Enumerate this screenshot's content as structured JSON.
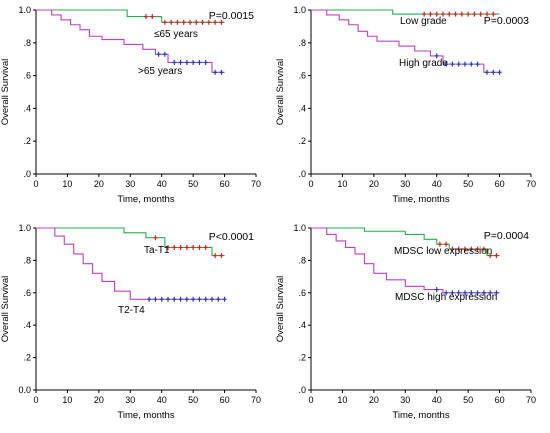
{
  "chart_data": [
    {
      "type": "line",
      "step": true,
      "xlabel": "Time, months",
      "ylabel": "Overall  Survival",
      "xlim": [
        0,
        70
      ],
      "ylim": [
        0,
        1.0
      ],
      "x_ticks": [
        "0",
        "10",
        "20",
        "30",
        "40",
        "50",
        "60",
        "70"
      ],
      "y_ticks": [
        ".0",
        ".2",
        ".4",
        ".6",
        ".8",
        "1.0"
      ],
      "pvalue": "P=0.0015",
      "series": [
        {
          "name": "≤65 years",
          "color": "#22b14c",
          "censor_color": "#e02020",
          "x": [
            0,
            29,
            40,
            60
          ],
          "y": [
            1.0,
            0.96,
            0.925,
            0.925
          ],
          "censored_x": [
            35,
            37,
            41,
            43,
            45,
            47,
            49,
            51,
            53,
            55,
            57,
            59
          ]
        },
        {
          "name": ">65 years",
          "color": "#c040c0",
          "censor_color": "#2040c0",
          "x": [
            0,
            5,
            8,
            11,
            14,
            17,
            21,
            28,
            34,
            38,
            42,
            56,
            60
          ],
          "y": [
            1.0,
            0.97,
            0.94,
            0.91,
            0.88,
            0.84,
            0.82,
            0.79,
            0.76,
            0.73,
            0.68,
            0.62,
            0.62
          ],
          "censored_x": [
            39,
            41,
            44,
            46,
            48,
            50,
            52,
            54,
            57,
            59
          ]
        }
      ]
    },
    {
      "type": "line",
      "step": true,
      "xlabel": "Time, months",
      "ylabel": "Overall  Survival",
      "xlim": [
        0,
        70
      ],
      "ylim": [
        0,
        1.0
      ],
      "x_ticks": [
        "0",
        "10",
        "20",
        "30",
        "40",
        "50",
        "60",
        "70"
      ],
      "y_ticks": [
        ".0",
        ".2",
        ".4",
        ".6",
        ".8",
        "1.0"
      ],
      "pvalue": "P=0.0003",
      "series": [
        {
          "name": "Low grade",
          "color": "#22b14c",
          "censor_color": "#e02020",
          "x": [
            0,
            26,
            60
          ],
          "y": [
            1.0,
            0.975,
            0.975
          ],
          "censored_x": [
            36,
            38,
            40,
            42,
            44,
            46,
            48,
            50,
            52,
            54,
            56,
            58
          ]
        },
        {
          "name": "High grade",
          "color": "#c040c0",
          "censor_color": "#2040c0",
          "x": [
            0,
            5,
            9,
            12,
            15,
            18,
            21,
            28,
            33,
            38,
            42,
            55,
            60
          ],
          "y": [
            1.0,
            0.97,
            0.94,
            0.91,
            0.87,
            0.84,
            0.81,
            0.78,
            0.75,
            0.72,
            0.67,
            0.62,
            0.62
          ],
          "censored_x": [
            40,
            43,
            45,
            47,
            49,
            51,
            53,
            56,
            58,
            60
          ]
        }
      ]
    },
    {
      "type": "line",
      "step": true,
      "xlabel": "Time, months",
      "ylabel": "Overall  Survival",
      "xlim": [
        0,
        70
      ],
      "ylim": [
        0,
        1.0
      ],
      "x_ticks": [
        "0",
        "10",
        "20",
        "30",
        "40",
        "50",
        "60",
        "70"
      ],
      "y_ticks": [
        "0.0",
        ".2",
        ".4",
        ".6",
        ".8",
        "1.0"
      ],
      "pvalue": "P<0.0001",
      "series": [
        {
          "name": "Ta-T1",
          "color": "#22b14c",
          "censor_color": "#e02020",
          "x": [
            0,
            28,
            35,
            41,
            56,
            60
          ],
          "y": [
            1.0,
            0.97,
            0.94,
            0.88,
            0.83,
            0.83
          ],
          "censored_x": [
            38,
            42,
            44,
            46,
            48,
            50,
            52,
            54,
            57,
            59
          ]
        },
        {
          "name": "T2-T4",
          "color": "#c040c0",
          "censor_color": "#2040c0",
          "x": [
            0,
            6,
            9,
            12,
            15,
            18,
            21,
            25,
            30,
            60
          ],
          "y": [
            1.0,
            0.95,
            0.9,
            0.84,
            0.78,
            0.72,
            0.67,
            0.61,
            0.56,
            0.56
          ],
          "censored_x": [
            36,
            38,
            40,
            42,
            44,
            46,
            48,
            50,
            52,
            54,
            56,
            58,
            60
          ]
        }
      ]
    },
    {
      "type": "line",
      "step": true,
      "xlabel": "Time, months",
      "ylabel": "Overall  Survival",
      "xlim": [
        0,
        70
      ],
      "ylim": [
        0,
        1.0
      ],
      "x_ticks": [
        "0",
        "10",
        "20",
        "30",
        "40",
        "50",
        "60",
        "70"
      ],
      "y_ticks": [
        ".0",
        ".2",
        ".4",
        ".6",
        ".8",
        "1.0"
      ],
      "pvalue": "P=0.0004",
      "series": [
        {
          "name": "MDSC low expression",
          "color": "#22b14c",
          "censor_color": "#e02020",
          "x": [
            0,
            17,
            30,
            36,
            40,
            44,
            56,
            60
          ],
          "y": [
            1.0,
            0.98,
            0.96,
            0.93,
            0.9,
            0.87,
            0.83,
            0.83
          ],
          "censored_x": [
            41,
            43,
            45,
            47,
            49,
            51,
            53,
            55,
            57,
            59
          ]
        },
        {
          "name": "MDSC high expression",
          "color": "#c040c0",
          "censor_color": "#2040c0",
          "x": [
            0,
            5,
            8,
            11,
            14,
            17,
            20,
            24,
            30,
            36,
            42,
            60
          ],
          "y": [
            1.0,
            0.96,
            0.92,
            0.88,
            0.84,
            0.78,
            0.72,
            0.68,
            0.64,
            0.62,
            0.6,
            0.6
          ],
          "censored_x": [
            40,
            43,
            45,
            47,
            49,
            51,
            53,
            55,
            57,
            59
          ]
        }
      ]
    }
  ]
}
